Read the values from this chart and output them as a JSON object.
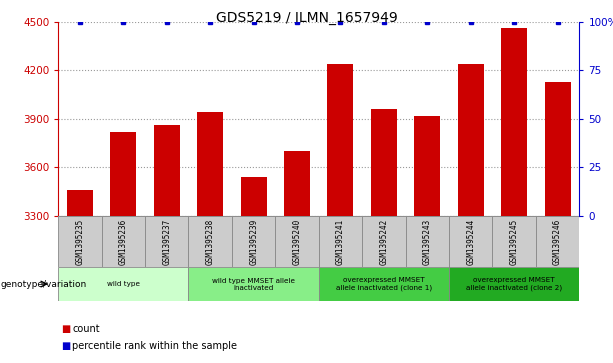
{
  "title": "GDS5219 / ILMN_1657949",
  "samples": [
    "GSM1395235",
    "GSM1395236",
    "GSM1395237",
    "GSM1395238",
    "GSM1395239",
    "GSM1395240",
    "GSM1395241",
    "GSM1395242",
    "GSM1395243",
    "GSM1395244",
    "GSM1395245",
    "GSM1395246"
  ],
  "counts": [
    3460,
    3820,
    3860,
    3940,
    3540,
    3700,
    4240,
    3960,
    3920,
    4240,
    4460,
    4130
  ],
  "percentiles": [
    100,
    100,
    100,
    100,
    100,
    100,
    100,
    100,
    100,
    100,
    100,
    100
  ],
  "ylim": [
    3300,
    4500
  ],
  "yticks": [
    3300,
    3600,
    3900,
    4200,
    4500
  ],
  "right_yticks": [
    0,
    25,
    50,
    75,
    100
  ],
  "right_ylim": [
    0,
    100
  ],
  "bar_color": "#cc0000",
  "dot_color": "#0000cc",
  "grid_color": "#999999",
  "bar_width": 0.6,
  "group_colors": [
    "#ccffcc",
    "#88ee88",
    "#44cc44",
    "#22aa22"
  ],
  "group_labels": [
    "wild type",
    "wild type MMSET allele\ninactivated",
    "overexpressed MMSET\nallele inactivated (clone 1)",
    "overexpressed MMSET\nallele inactivated (clone 2)"
  ],
  "group_ranges": [
    [
      0,
      3
    ],
    [
      3,
      6
    ],
    [
      6,
      9
    ],
    [
      9,
      12
    ]
  ],
  "genotype_label": "genotype/variation",
  "legend_count": "count",
  "legend_pct": "percentile rank within the sample",
  "xlabel_color": "#cc0000",
  "right_axis_color": "#0000cc",
  "cell_color": "#cccccc",
  "cell_edge_color": "#888888"
}
